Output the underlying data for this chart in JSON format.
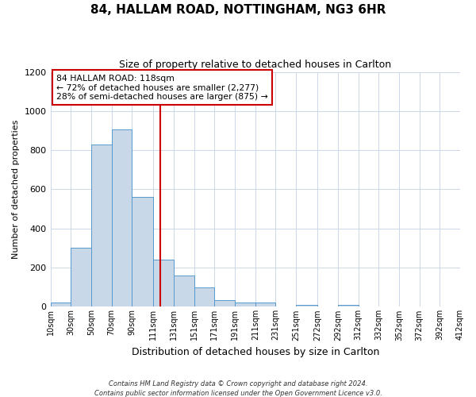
{
  "title": "84, HALLAM ROAD, NOTTINGHAM, NG3 6HR",
  "subtitle": "Size of property relative to detached houses in Carlton",
  "xlabel": "Distribution of detached houses by size in Carlton",
  "ylabel": "Number of detached properties",
  "bin_labels": [
    "10sqm",
    "30sqm",
    "50sqm",
    "70sqm",
    "90sqm",
    "111sqm",
    "131sqm",
    "151sqm",
    "171sqm",
    "191sqm",
    "211sqm",
    "231sqm",
    "251sqm",
    "272sqm",
    "292sqm",
    "312sqm",
    "332sqm",
    "352sqm",
    "372sqm",
    "392sqm",
    "412sqm"
  ],
  "bin_edges": [
    10,
    30,
    50,
    70,
    90,
    111,
    131,
    151,
    171,
    191,
    211,
    231,
    251,
    272,
    292,
    312,
    332,
    352,
    372,
    392,
    412
  ],
  "bar_heights": [
    20,
    300,
    830,
    905,
    560,
    240,
    160,
    100,
    35,
    20,
    20,
    0,
    10,
    0,
    10,
    0,
    0,
    0,
    0,
    0
  ],
  "bar_color": "#c8d8e8",
  "bar_edge_color": "#5599cc",
  "vline_x": 118,
  "vline_color": "#cc0000",
  "ylim": [
    0,
    1200
  ],
  "yticks": [
    0,
    200,
    400,
    600,
    800,
    1000,
    1200
  ],
  "annotation_title": "84 HALLAM ROAD: 118sqm",
  "annotation_line1": "← 72% of detached houses are smaller (2,277)",
  "annotation_line2": "28% of semi-detached houses are larger (875) →",
  "annotation_box_color": "#ffffff",
  "annotation_box_edge": "#cc0000",
  "footer1": "Contains HM Land Registry data © Crown copyright and database right 2024.",
  "footer2": "Contains public sector information licensed under the Open Government Licence v3.0.",
  "background_color": "#ffffff",
  "grid_color": "#ccd8e8"
}
